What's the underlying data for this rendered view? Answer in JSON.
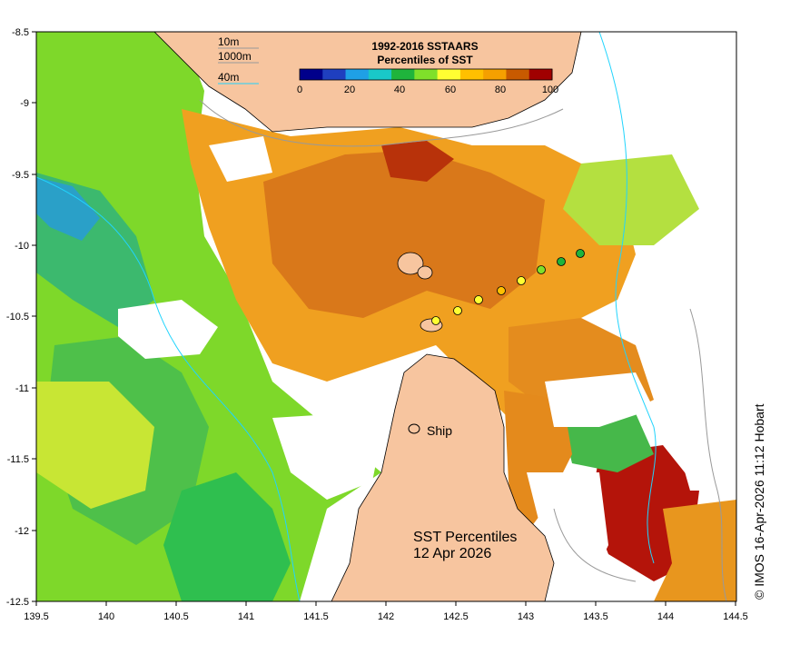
{
  "map": {
    "title_line1": "SST Percentiles",
    "title_line2": "12 Apr 2026",
    "credit": "© IMOS 16-Apr-2026 11:12 Hobart",
    "ship_label": "Ship",
    "x_ticks": [
      "139.5",
      "140",
      "140.5",
      "141",
      "141.5",
      "142",
      "142.5",
      "143",
      "143.5",
      "144",
      "144.5"
    ],
    "y_ticks": [
      "-8.5",
      "-9",
      "-9.5",
      "-10",
      "-10.5",
      "-11",
      "-11.5",
      "-12",
      "-12.5"
    ],
    "depth_legend": [
      "10m",
      "1000m",
      "40m"
    ],
    "colorbar": {
      "title_line1": "1992-2016 SSTAARS",
      "title_line2": "Percentiles of SST",
      "tick_labels": [
        "0",
        "20",
        "40",
        "60",
        "80",
        "100"
      ],
      "colors": [
        "#00008b",
        "#1f3fbf",
        "#1fa0e6",
        "#19c8c8",
        "#1fb43c",
        "#7fe02a",
        "#ffff32",
        "#ffc000",
        "#f5a000",
        "#c85a00",
        "#a00000"
      ]
    },
    "colors": {
      "land": "#f7c59f",
      "coast": "#000000",
      "contour_10m": "#999999",
      "contour_40m": "#21d4fd"
    }
  }
}
